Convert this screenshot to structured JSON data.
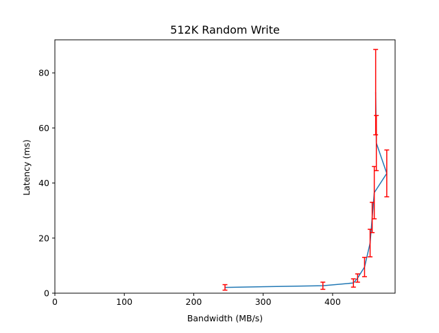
{
  "chart_data": {
    "type": "line",
    "title": "512K  Random Write",
    "xlabel": "Bandwidth (MB/s)",
    "ylabel": "Latency (ms)",
    "xlim": [
      0,
      490
    ],
    "ylim": [
      0,
      92
    ],
    "xticks": [
      0,
      100,
      200,
      300,
      400
    ],
    "yticks": [
      0,
      20,
      40,
      60,
      80
    ],
    "grid": false,
    "series": [
      {
        "line_color": "#1f77b4",
        "errorbar_color": "#ff0000",
        "points": [
          {
            "x": 245,
            "y": 2.1,
            "err": 1.0
          },
          {
            "x": 386,
            "y": 2.7,
            "err": 1.3
          },
          {
            "x": 430,
            "y": 3.7,
            "err": 1.5
          },
          {
            "x": 436,
            "y": 5.5,
            "err": 1.5
          },
          {
            "x": 446,
            "y": 9.5,
            "err": 3.5
          },
          {
            "x": 454,
            "y": 18.2,
            "err": 5.0
          },
          {
            "x": 457,
            "y": 27.5,
            "err": 5.5
          },
          {
            "x": 460,
            "y": 36.5,
            "err": 9.5
          },
          {
            "x": 478,
            "y": 43.5,
            "err": 8.5
          },
          {
            "x": 463,
            "y": 54.5,
            "err": 10.0
          },
          {
            "x": 462,
            "y": 73.0,
            "err": 15.5
          }
        ]
      }
    ]
  }
}
